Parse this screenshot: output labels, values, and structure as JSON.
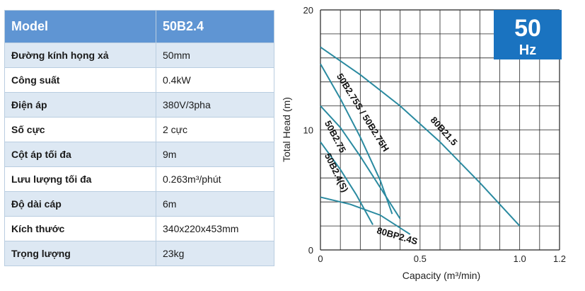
{
  "spec": {
    "header": {
      "label": "Model",
      "value": "50B2.4"
    },
    "rows": [
      {
        "label": "Đường kính họng xả",
        "value": "50mm"
      },
      {
        "label": "Công suất",
        "value": "0.4kW"
      },
      {
        "label": "Điện áp",
        "value": "380V/3pha"
      },
      {
        "label": "Số cực",
        "value": "2 cực"
      },
      {
        "label": "Cột áp tối đa",
        "value": "9m"
      },
      {
        "label": "Lưu lượng tối đa",
        "value": "0.263m³/phút"
      },
      {
        "label": "Độ dài cáp",
        "value": "6m"
      },
      {
        "label": "Kích thước",
        "value": "340x220x453mm"
      },
      {
        "label": "Trọng lượng",
        "value": "23kg"
      }
    ]
  },
  "badge": {
    "big": "50",
    "small": "Hz",
    "color": "#1a73c0"
  },
  "chart_data": {
    "type": "line",
    "xlabel": "Capacity (m³/min)",
    "ylabel": "Total Head (m)",
    "xlim": [
      0,
      1.2
    ],
    "ylim": [
      0,
      20
    ],
    "xticks": [
      "0",
      "0.5",
      "1.0",
      "1.2"
    ],
    "yticks": [
      "0",
      "10",
      "20"
    ],
    "grid": true,
    "line_color": "#2a8aa0",
    "series": [
      {
        "name": "80B21.5",
        "x": [
          0,
          0.2,
          0.4,
          0.6,
          0.8,
          1.0
        ],
        "y": [
          16.9,
          14.6,
          12.0,
          9.0,
          5.6,
          2.0
        ]
      },
      {
        "name": "50B2.75S / 50B2.75H",
        "x": [
          0,
          0.1,
          0.2,
          0.3,
          0.36
        ],
        "y": [
          15.5,
          12.6,
          9.4,
          5.8,
          3.0
        ]
      },
      {
        "name": "50B2.75",
        "x": [
          0,
          0.1,
          0.2,
          0.3,
          0.4
        ],
        "y": [
          12.0,
          10.2,
          7.8,
          5.2,
          2.6
        ]
      },
      {
        "name": "50B2.4(S)",
        "x": [
          0,
          0.1,
          0.18,
          0.263
        ],
        "y": [
          9.0,
          6.7,
          4.6,
          2.1
        ]
      },
      {
        "name": "80BP2.4S",
        "x": [
          0,
          0.15,
          0.3,
          0.45
        ],
        "y": [
          4.4,
          3.8,
          2.9,
          1.3
        ]
      }
    ],
    "labels": [
      "80B21.5",
      "50B2.75S / 50B2.75H",
      "50B2.75",
      "50B2.4(S)",
      "80BP2.4S"
    ]
  }
}
